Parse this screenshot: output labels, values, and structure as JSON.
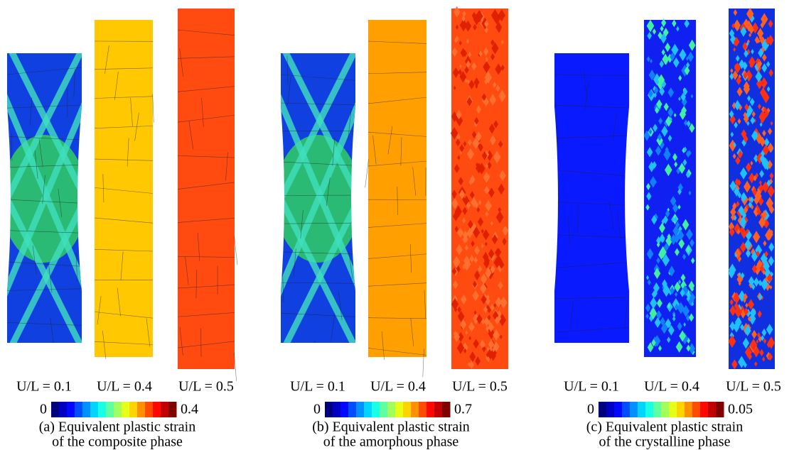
{
  "panels": [
    {
      "strain_labels": [
        "U/L = 0.1",
        "U/L = 0.4",
        "U/L = 0.5"
      ],
      "colorbar": {
        "min": 0,
        "max": 0.4
      },
      "caption": [
        "(a) Equivalent plastic strain",
        "of the composite phase"
      ]
    },
    {
      "strain_labels": [
        "U/L = 0.1",
        "U/L = 0.4",
        "U/L = 0.5"
      ],
      "colorbar": {
        "min": 0,
        "max": 0.7
      },
      "caption": [
        "(b) Equivalent plastic strain",
        "of the amorphous phase"
      ]
    },
    {
      "strain_labels": [
        "U/L = 0.1",
        "U/L = 0.4",
        "U/L = 0.5"
      ],
      "colorbar": {
        "min": 0,
        "max": 0.05
      },
      "caption": [
        "(c) Equivalent plastic strain",
        "of the crystalline phase"
      ]
    }
  ]
}
